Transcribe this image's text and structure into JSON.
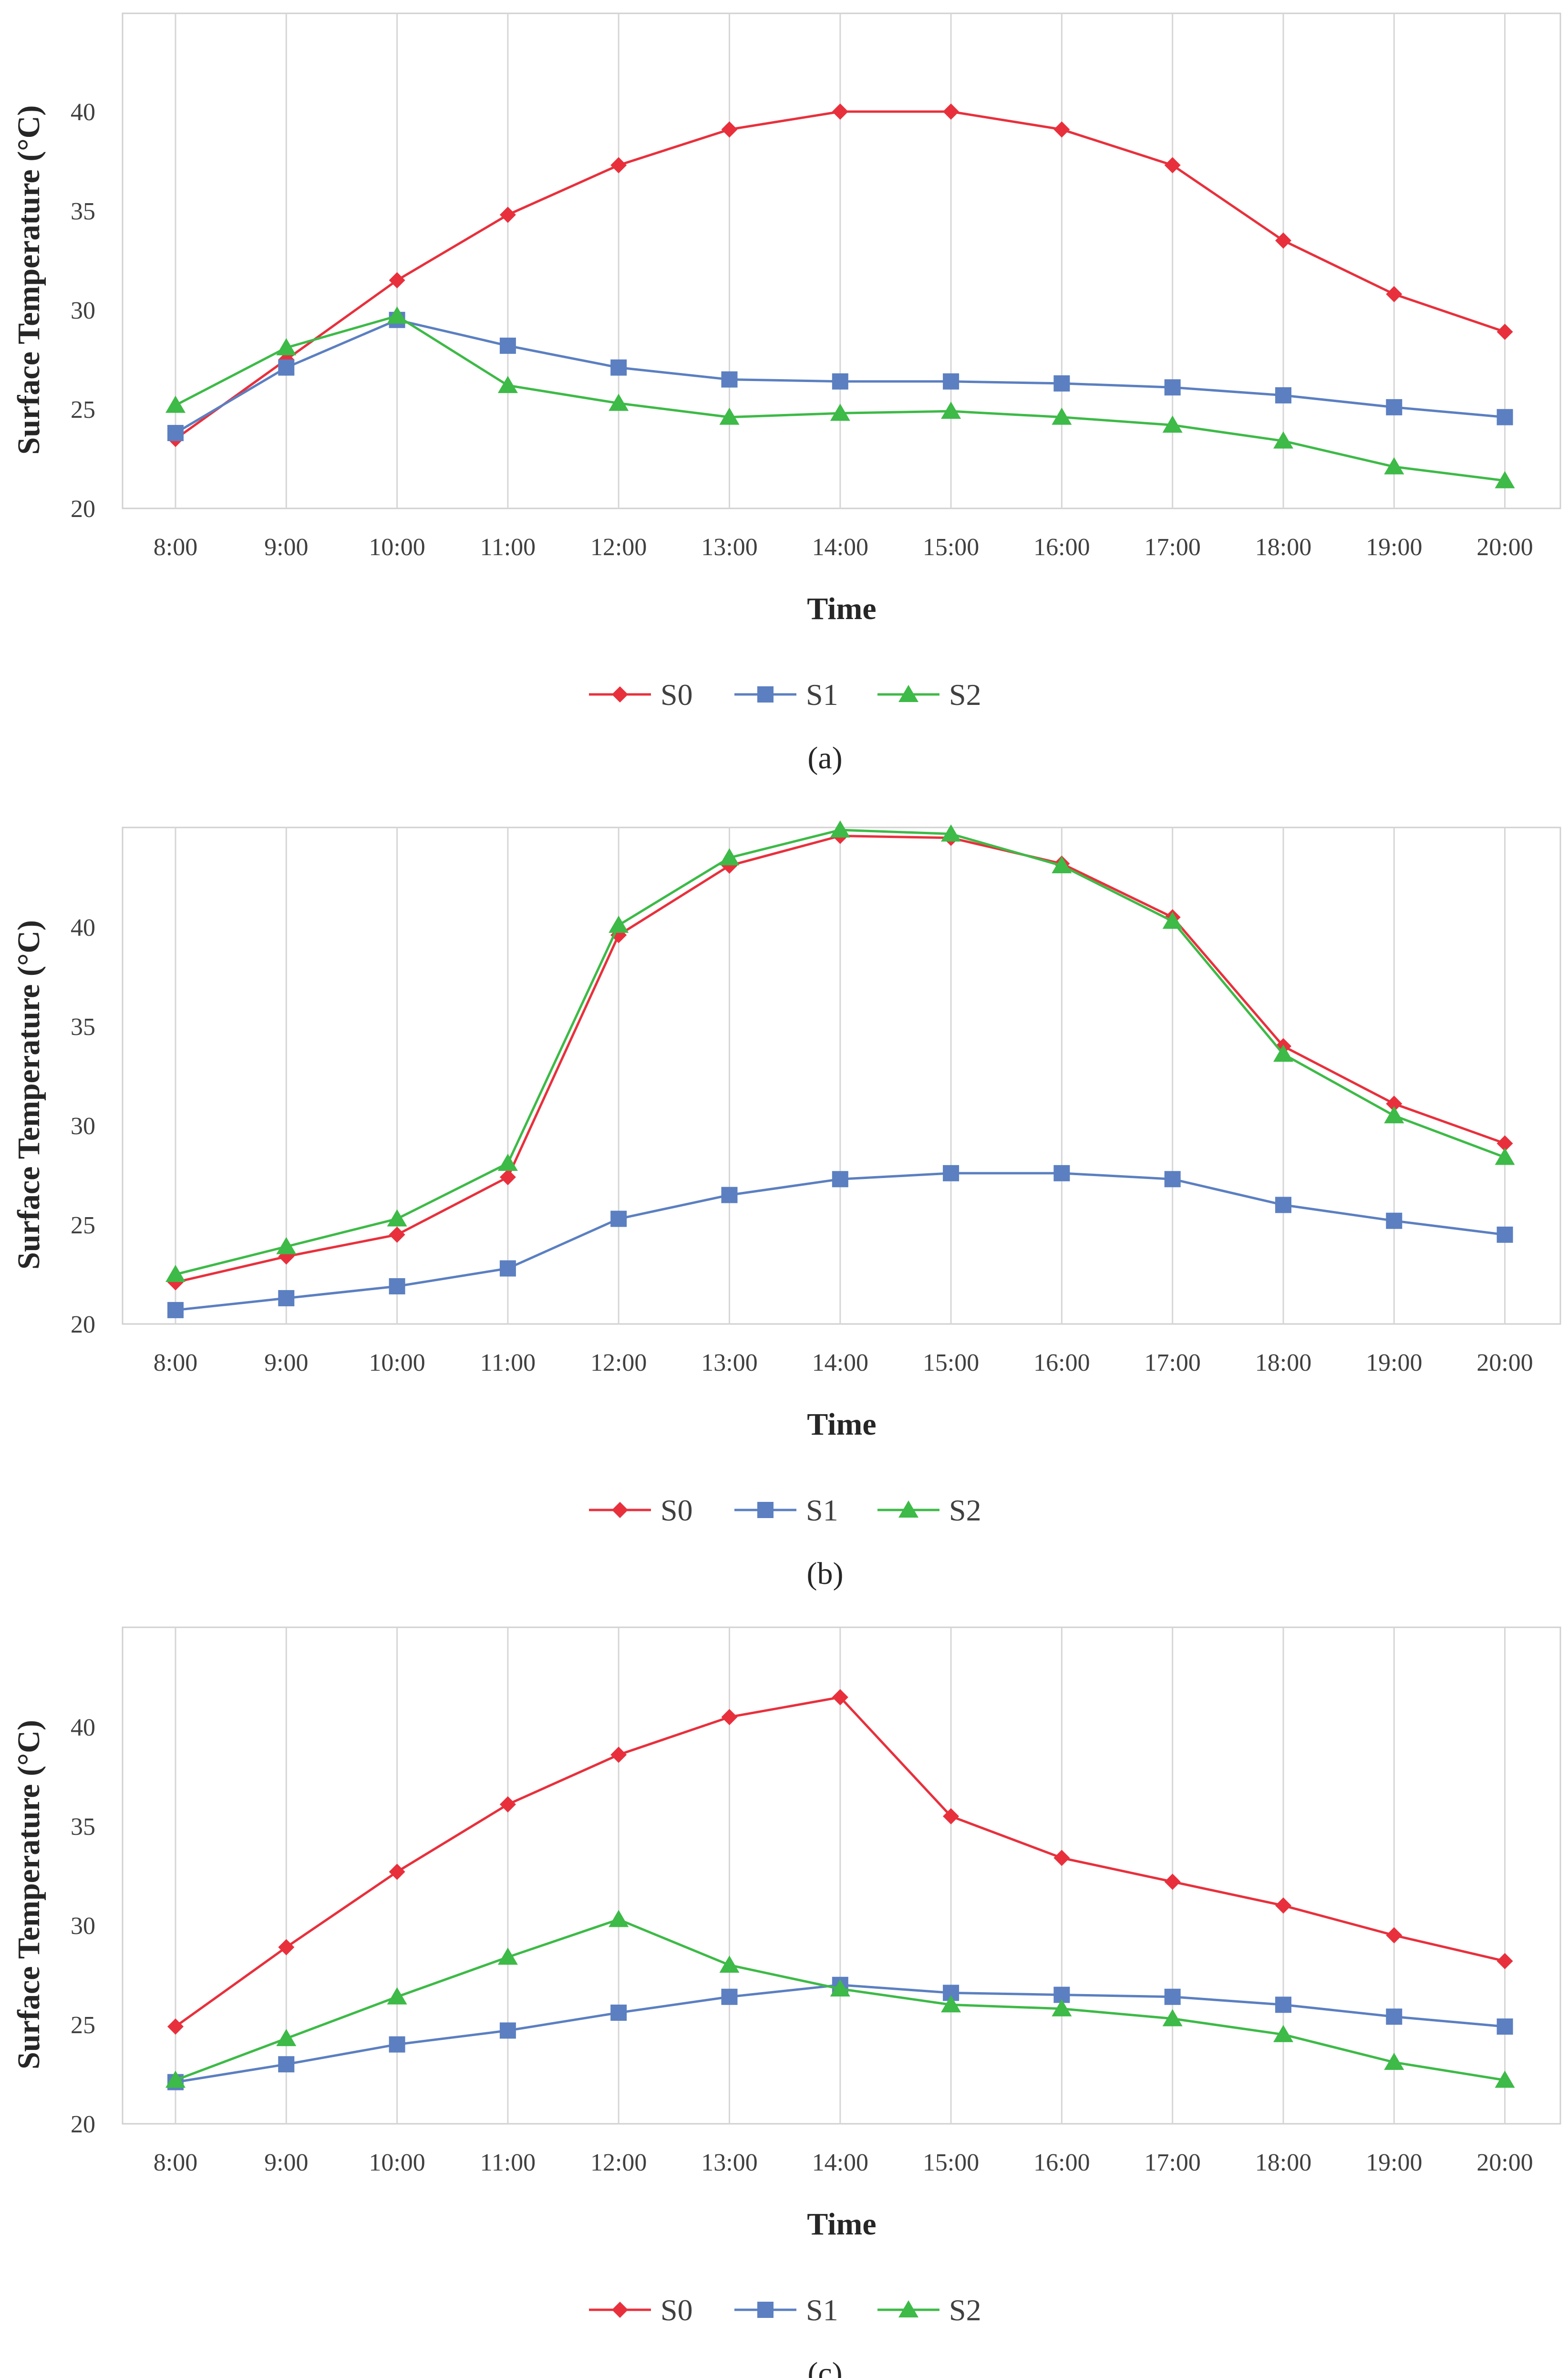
{
  "figure": {
    "colors": {
      "S0": "#e8303c",
      "S1": "#5b7fc1",
      "S2": "#3dba47"
    },
    "markers": {
      "S0": "diamond",
      "S1": "square",
      "S2": "triangle"
    }
  },
  "chart_data": [
    {
      "type": "line",
      "caption": "(a)",
      "xlabel": "Time",
      "ylabel": "Surface Temperature (°C)",
      "ylim": [
        20,
        45
      ],
      "yticks": [
        20,
        25,
        30,
        35,
        40
      ],
      "categories": [
        "8:00",
        "9:00",
        "10:00",
        "11:00",
        "12:00",
        "13:00",
        "14:00",
        "15:00",
        "16:00",
        "17:00",
        "18:00",
        "19:00",
        "20:00"
      ],
      "legend_position": "bottom",
      "series": [
        {
          "name": "S0",
          "values": [
            23.5,
            27.5,
            31.5,
            34.8,
            37.3,
            39.1,
            40.0,
            40.0,
            39.1,
            37.3,
            33.5,
            30.8,
            28.9
          ]
        },
        {
          "name": "S1",
          "values": [
            23.8,
            27.1,
            29.5,
            28.2,
            27.1,
            26.5,
            26.4,
            26.4,
            26.3,
            26.1,
            25.7,
            25.1,
            24.6
          ]
        },
        {
          "name": "S2",
          "values": [
            25.2,
            28.1,
            29.7,
            26.2,
            25.3,
            24.6,
            24.8,
            24.9,
            24.6,
            24.2,
            23.4,
            22.1,
            21.4
          ]
        }
      ]
    },
    {
      "type": "line",
      "caption": "(b)",
      "xlabel": "Time",
      "ylabel": "Surface Temperature (°C)",
      "ylim": [
        20,
        45
      ],
      "yticks": [
        20,
        25,
        30,
        35,
        40
      ],
      "categories": [
        "8:00",
        "9:00",
        "10:00",
        "11:00",
        "12:00",
        "13:00",
        "14:00",
        "15:00",
        "16:00",
        "17:00",
        "18:00",
        "19:00",
        "20:00"
      ],
      "legend_position": "bottom",
      "series": [
        {
          "name": "S0",
          "values": [
            22.1,
            23.4,
            24.5,
            27.4,
            39.6,
            43.1,
            44.6,
            44.5,
            43.2,
            40.5,
            34.0,
            31.1,
            29.1
          ]
        },
        {
          "name": "S1",
          "values": [
            20.7,
            21.3,
            21.9,
            22.8,
            25.3,
            26.5,
            27.3,
            27.6,
            27.6,
            27.3,
            26.0,
            25.2,
            24.5
          ]
        },
        {
          "name": "S2",
          "values": [
            22.5,
            23.9,
            25.3,
            28.1,
            40.1,
            43.5,
            44.9,
            44.7,
            43.1,
            40.3,
            33.6,
            30.5,
            28.4
          ]
        }
      ]
    },
    {
      "type": "line",
      "caption": "(c)",
      "xlabel": "Time",
      "ylabel": "Surface Temperature (°C)",
      "ylim": [
        20,
        45
      ],
      "yticks": [
        20,
        25,
        30,
        35,
        40
      ],
      "categories": [
        "8:00",
        "9:00",
        "10:00",
        "11:00",
        "12:00",
        "13:00",
        "14:00",
        "15:00",
        "16:00",
        "17:00",
        "18:00",
        "19:00",
        "20:00"
      ],
      "legend_position": "bottom",
      "series": [
        {
          "name": "S0",
          "values": [
            24.9,
            28.9,
            32.7,
            36.1,
            38.6,
            40.5,
            41.5,
            35.5,
            33.4,
            32.2,
            31.0,
            29.5,
            28.2
          ]
        },
        {
          "name": "S1",
          "values": [
            22.1,
            23.0,
            24.0,
            24.7,
            25.6,
            26.4,
            27.0,
            26.6,
            26.5,
            26.4,
            26.0,
            25.4,
            24.9
          ]
        },
        {
          "name": "S2",
          "values": [
            22.2,
            24.3,
            26.4,
            28.4,
            30.3,
            28.0,
            26.8,
            26.0,
            25.8,
            25.3,
            24.5,
            23.1,
            22.2
          ]
        }
      ]
    }
  ]
}
